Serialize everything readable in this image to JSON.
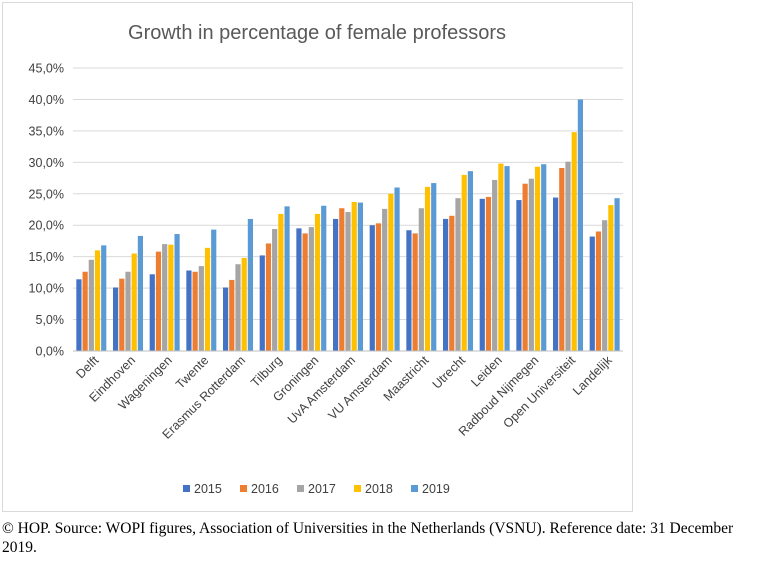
{
  "chart_data": {
    "type": "bar",
    "title": "Growth in percentage of female professors",
    "xlabel": "",
    "ylabel": "",
    "ylim": [
      0,
      45
    ],
    "y_tick_labels": [
      "0,0%",
      "5,0%",
      "10,0%",
      "15,0%",
      "20,0%",
      "25,0%",
      "30,0%",
      "35,0%",
      "40,0%",
      "45,0%"
    ],
    "grid": true,
    "legend_position": "bottom",
    "categories": [
      "Delft",
      "Eindhoven",
      "Wageningen",
      "Twente",
      "Erasmus Rotterdam",
      "Tilburg",
      "Groningen",
      "UvA Amsterdam",
      "VU Amsterdam",
      "Maastricht",
      "Utrecht",
      "Leiden",
      "Radboud Nijmegen",
      "Open Universiteit",
      "Landelijk"
    ],
    "series": [
      {
        "name": "2015",
        "color": "#4472C4",
        "values": [
          11.4,
          10.1,
          12.2,
          12.8,
          10.1,
          15.2,
          19.5,
          21.0,
          20.0,
          19.2,
          21.0,
          24.2,
          24.0,
          24.4,
          18.2
        ]
      },
      {
        "name": "2016",
        "color": "#ED7D31",
        "values": [
          12.6,
          11.5,
          15.8,
          12.6,
          11.3,
          17.1,
          18.7,
          22.7,
          20.3,
          18.7,
          21.5,
          24.5,
          26.6,
          29.1,
          19.0
        ]
      },
      {
        "name": "2017",
        "color": "#A5A5A5",
        "values": [
          14.5,
          12.6,
          17.0,
          13.5,
          13.8,
          19.4,
          19.7,
          22.1,
          22.6,
          22.7,
          24.3,
          27.2,
          27.4,
          30.1,
          20.8
        ]
      },
      {
        "name": "2018",
        "color": "#FFC000",
        "values": [
          16.0,
          15.5,
          16.9,
          16.4,
          14.8,
          21.8,
          21.8,
          23.7,
          25.0,
          26.1,
          28.0,
          29.8,
          29.3,
          34.8,
          23.2
        ]
      },
      {
        "name": "2019",
        "color": "#5B9BD5",
        "values": [
          16.8,
          18.3,
          18.6,
          19.3,
          21.0,
          23.0,
          23.1,
          23.6,
          26.0,
          26.7,
          28.6,
          29.4,
          29.7,
          40.0,
          24.3
        ]
      }
    ]
  },
  "caption": {
    "text": "© HOP. Source: WOPI figures, Association of Universities in the Netherlands (VSNU). Reference date: 31 December 2019."
  }
}
